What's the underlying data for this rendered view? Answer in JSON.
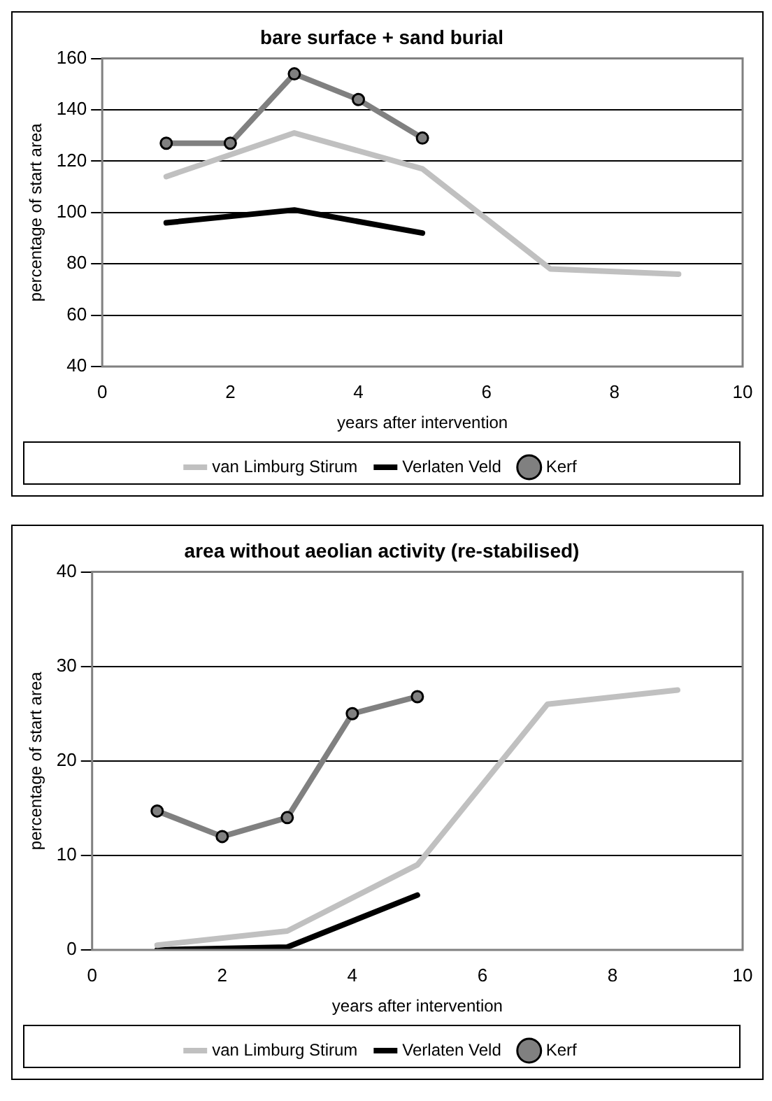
{
  "chart_data": [
    {
      "type": "line",
      "title": "bare surface + sand burial",
      "xlabel": "years after intervention",
      "ylabel": "percentage of start area",
      "xlim": [
        0,
        10
      ],
      "xticks": [
        0,
        2,
        4,
        6,
        8,
        10
      ],
      "ylim": [
        40,
        160
      ],
      "yticks": [
        40,
        60,
        80,
        100,
        120,
        140,
        160
      ],
      "grid": "y",
      "legend": "bottom",
      "series": [
        {
          "name": "van Limburg Stirum",
          "color": "#c0c0c0",
          "x": [
            1,
            3,
            5,
            7,
            9
          ],
          "values": [
            114,
            131,
            117,
            78,
            76
          ],
          "marker": "none"
        },
        {
          "name": "Verlaten Veld",
          "color": "#000000",
          "x": [
            1,
            3,
            5
          ],
          "values": [
            96,
            101,
            92
          ],
          "marker": "none"
        },
        {
          "name": "Kerf",
          "color": "#808080",
          "x": [
            1,
            2,
            3,
            4,
            5
          ],
          "values": [
            127,
            127,
            154,
            144,
            129
          ],
          "marker": "circle"
        }
      ]
    },
    {
      "type": "line",
      "title": "area without aeolian activity (re-stabilised)",
      "xlabel": "years after intervention",
      "ylabel": "percentage of start area",
      "xlim": [
        0,
        10
      ],
      "xticks": [
        0,
        2,
        4,
        6,
        8,
        10
      ],
      "ylim": [
        0,
        40
      ],
      "yticks": [
        0,
        10,
        20,
        30,
        40
      ],
      "grid": "y",
      "legend": "bottom",
      "series": [
        {
          "name": "van Limburg Stirum",
          "color": "#c0c0c0",
          "x": [
            1,
            3,
            5,
            7,
            9
          ],
          "values": [
            0.5,
            2,
            9,
            26,
            27.5
          ],
          "marker": "none"
        },
        {
          "name": "Verlaten Veld",
          "color": "#000000",
          "x": [
            1,
            3,
            5
          ],
          "values": [
            0,
            0.3,
            5.8
          ],
          "marker": "none"
        },
        {
          "name": "Kerf",
          "color": "#808080",
          "x": [
            1,
            2,
            3,
            4,
            5
          ],
          "values": [
            14.7,
            12,
            14,
            25,
            26.8
          ],
          "marker": "circle"
        }
      ]
    }
  ]
}
